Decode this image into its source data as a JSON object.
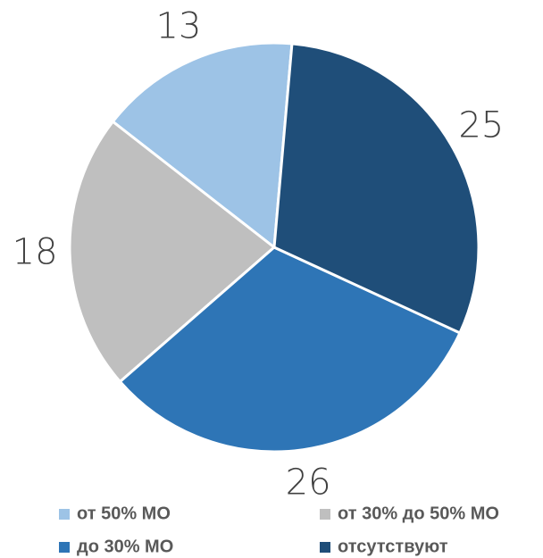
{
  "chart_data": {
    "type": "pie",
    "categories": [
      "от 50% МО",
      "от 30% до 50% МО",
      "до 30% МО",
      "отсутствуют"
    ],
    "values": [
      13,
      18,
      26,
      25
    ],
    "colors": [
      "#9dc3e6",
      "#bfbfbf",
      "#2e75b6",
      "#1f4e79"
    ],
    "legend": "bottom"
  }
}
